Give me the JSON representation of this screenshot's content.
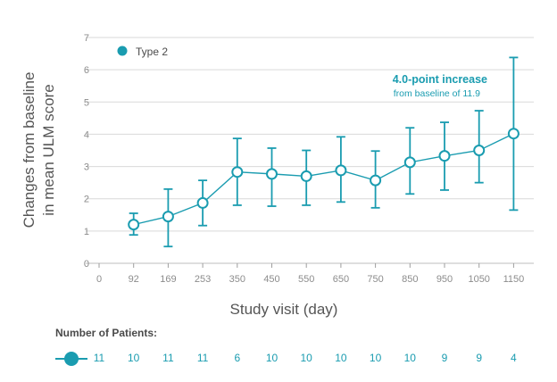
{
  "chart_data": {
    "type": "line",
    "ylabel": [
      "Changes from baseline",
      "in mean ULM score"
    ],
    "xlabel": "Study visit (day)",
    "ylim": [
      0,
      7
    ],
    "yticks": [
      "0",
      "1",
      "2",
      "3",
      "4",
      "5",
      "6",
      "7"
    ],
    "categories": [
      "0",
      "92",
      "169",
      "253",
      "350",
      "450",
      "550",
      "650",
      "750",
      "850",
      "950",
      "1050",
      "1150"
    ],
    "grid": true,
    "legend": {
      "position": "top-left",
      "label": "Type 2"
    },
    "series": [
      {
        "name": "Type 2",
        "x": [
          "92",
          "169",
          "253",
          "350",
          "450",
          "550",
          "650",
          "750",
          "850",
          "950",
          "1050",
          "1150"
        ],
        "values": [
          1.2,
          1.45,
          1.87,
          2.83,
          2.77,
          2.7,
          2.88,
          2.57,
          3.13,
          3.33,
          3.5,
          4.02
        ],
        "error_low": [
          0.88,
          0.52,
          1.17,
          1.8,
          1.77,
          1.8,
          1.9,
          1.72,
          2.15,
          2.27,
          2.5,
          1.65
        ],
        "error_high": [
          1.55,
          2.3,
          2.57,
          3.87,
          3.57,
          3.5,
          3.92,
          3.48,
          4.2,
          4.37,
          4.73,
          6.38
        ]
      }
    ],
    "annotation": {
      "title": "4.0-point increase",
      "subtitle": "from baseline of 11.9"
    },
    "colors": {
      "series": "#1a9cb0",
      "grid": "#d9d9d9",
      "axis_text": "#8c8c8c",
      "label_text": "#555555"
    }
  },
  "patients": {
    "title": "Number of Patients:",
    "counts": [
      "11",
      "10",
      "11",
      "11",
      "6",
      "10",
      "10",
      "10",
      "10",
      "10",
      "9",
      "9",
      "4"
    ]
  }
}
